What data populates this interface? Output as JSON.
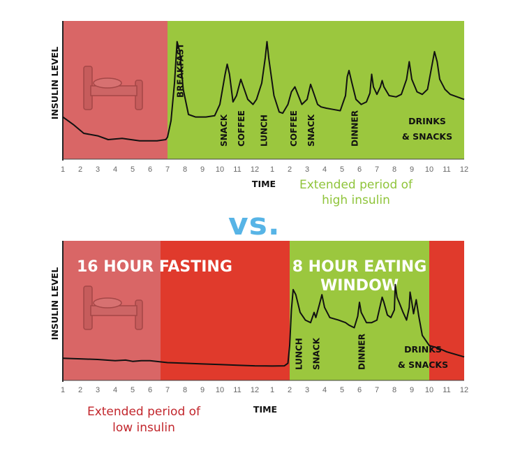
{
  "vs_label": "vs.",
  "colors": {
    "sleep": "#d96666",
    "fasting": "#e03a2c",
    "eating": "#9bc73e",
    "note_green": "#8fc43a",
    "note_red": "#c2262c",
    "vs": "#57b4e6",
    "line": "#111111"
  },
  "chart_data": [
    {
      "type": "line",
      "title": "",
      "ylabel": "INSULIN LEVEL",
      "xlabel": "TIME",
      "x_ticks": [
        "1",
        "2",
        "3",
        "4",
        "5",
        "6",
        "7",
        "8",
        "9",
        "10",
        "11",
        "12",
        "1",
        "2",
        "3",
        "4",
        "5",
        "6",
        "7",
        "8",
        "9",
        "10",
        "11",
        "12"
      ],
      "xlim": [
        1,
        24
      ],
      "ylim": [
        0,
        100
      ],
      "regions": [
        {
          "name": "sleep",
          "start": 1,
          "end": 7,
          "color": "#d96666"
        },
        {
          "name": "eating",
          "start": 7,
          "end": 24,
          "color": "#9bc73e"
        }
      ],
      "series": [
        {
          "values": [
            [
              1,
              28
            ],
            [
              1.6,
              22
            ],
            [
              2.2,
              15
            ],
            [
              3,
              13
            ],
            [
              3.6,
              10
            ],
            [
              4.4,
              11
            ],
            [
              5.4,
              9
            ],
            [
              6.4,
              9
            ],
            [
              6.9,
              10
            ],
            [
              7.0,
              12
            ],
            [
              7.2,
              25
            ],
            [
              7.4,
              55
            ],
            [
              7.55,
              88
            ],
            [
              7.7,
              80
            ],
            [
              7.9,
              50
            ],
            [
              8.2,
              30
            ],
            [
              8.6,
              28
            ],
            [
              9.2,
              28
            ],
            [
              9.7,
              29
            ],
            [
              10.0,
              38
            ],
            [
              10.3,
              62
            ],
            [
              10.42,
              70
            ],
            [
              10.55,
              62
            ],
            [
              10.75,
              40
            ],
            [
              10.95,
              45
            ],
            [
              11.2,
              58
            ],
            [
              11.3,
              54
            ],
            [
              11.6,
              42
            ],
            [
              11.9,
              38
            ],
            [
              12.1,
              42
            ],
            [
              12.4,
              55
            ],
            [
              12.6,
              75
            ],
            [
              12.7,
              88
            ],
            [
              12.8,
              75
            ],
            [
              13.1,
              45
            ],
            [
              13.4,
              32
            ],
            [
              13.6,
              31
            ],
            [
              13.9,
              38
            ],
            [
              14.1,
              48
            ],
            [
              14.3,
              52
            ],
            [
              14.5,
              45
            ],
            [
              14.7,
              38
            ],
            [
              15.0,
              42
            ],
            [
              15.2,
              54
            ],
            [
              15.35,
              48
            ],
            [
              15.6,
              38
            ],
            [
              15.8,
              36
            ],
            [
              16.1,
              35
            ],
            [
              16.5,
              34
            ],
            [
              16.9,
              33
            ],
            [
              17.2,
              45
            ],
            [
              17.3,
              60
            ],
            [
              17.4,
              65
            ],
            [
              17.55,
              56
            ],
            [
              17.8,
              42
            ],
            [
              18.1,
              38
            ],
            [
              18.4,
              40
            ],
            [
              18.6,
              47
            ],
            [
              18.7,
              62
            ],
            [
              18.8,
              52
            ],
            [
              19.0,
              46
            ],
            [
              19.2,
              52
            ],
            [
              19.3,
              57
            ],
            [
              19.4,
              52
            ],
            [
              19.7,
              45
            ],
            [
              20.1,
              44
            ],
            [
              20.4,
              46
            ],
            [
              20.7,
              58
            ],
            [
              20.85,
              72
            ],
            [
              21.0,
              58
            ],
            [
              21.3,
              48
            ],
            [
              21.6,
              46
            ],
            [
              21.9,
              50
            ],
            [
              22.1,
              65
            ],
            [
              22.3,
              80
            ],
            [
              22.45,
              72
            ],
            [
              22.6,
              58
            ],
            [
              22.9,
              50
            ],
            [
              23.2,
              46
            ],
            [
              23.6,
              44
            ],
            [
              24,
              42
            ]
          ]
        }
      ],
      "annotations": [
        {
          "text": "BREAKFAST",
          "x": 7.7
        },
        {
          "text": "SNACK",
          "x": 10.2
        },
        {
          "text": "COFFEE",
          "x": 11.2
        },
        {
          "text": "LUNCH",
          "x": 12.5
        },
        {
          "text": "COFFEE",
          "x": 14.2
        },
        {
          "text": "SNACK",
          "x": 15.2
        },
        {
          "text": "DINNER",
          "x": 17.7
        }
      ],
      "drinks_label": [
        "DRINKS",
        "& SNACKS"
      ],
      "note": [
        "Extended period of",
        "high insulin"
      ]
    },
    {
      "type": "line",
      "title": "",
      "ylabel": "INSULIN LEVEL",
      "xlabel": "TIME",
      "x_ticks": [
        "1",
        "2",
        "3",
        "4",
        "5",
        "6",
        "7",
        "8",
        "9",
        "10",
        "11",
        "12",
        "1",
        "2",
        "3",
        "4",
        "5",
        "6",
        "7",
        "8",
        "9",
        "10",
        "11",
        "12"
      ],
      "xlim": [
        1,
        24
      ],
      "ylim": [
        0,
        100
      ],
      "regions": [
        {
          "name": "sleep",
          "start": 1,
          "end": 6.6,
          "color": "#d96666"
        },
        {
          "name": "fasting",
          "start": 6.6,
          "end": 14,
          "color": "#e03a2c"
        },
        {
          "name": "eating",
          "start": 14,
          "end": 22,
          "color": "#9bc73e"
        },
        {
          "name": "fasting",
          "start": 22,
          "end": 24,
          "color": "#e03a2c"
        }
      ],
      "region_labels": [
        {
          "lines": [
            "16 HOUR FASTING"
          ],
          "x": 1.8
        },
        {
          "lines": [
            "8 HOUR EATING",
            "WINDOW"
          ],
          "x": 18
        }
      ],
      "series": [
        {
          "values": [
            [
              1,
              12
            ],
            [
              2,
              11.5
            ],
            [
              3,
              11
            ],
            [
              4,
              10
            ],
            [
              4.6,
              10.5
            ],
            [
              5,
              9.5
            ],
            [
              5.5,
              10
            ],
            [
              6,
              10
            ],
            [
              7,
              8.5
            ],
            [
              8,
              8
            ],
            [
              9,
              7.5
            ],
            [
              10,
              7
            ],
            [
              11,
              6.5
            ],
            [
              12,
              6
            ],
            [
              13,
              5.8
            ],
            [
              13.7,
              6
            ],
            [
              13.9,
              8
            ],
            [
              14.0,
              22
            ],
            [
              14.1,
              50
            ],
            [
              14.2,
              66
            ],
            [
              14.35,
              62
            ],
            [
              14.6,
              48
            ],
            [
              14.9,
              42
            ],
            [
              15.2,
              40
            ],
            [
              15.4,
              48
            ],
            [
              15.5,
              44
            ],
            [
              15.7,
              54
            ],
            [
              15.85,
              62
            ],
            [
              16.0,
              52
            ],
            [
              16.3,
              44
            ],
            [
              16.8,
              42
            ],
            [
              17.2,
              40
            ],
            [
              17.4,
              38
            ],
            [
              17.7,
              36
            ],
            [
              17.9,
              45
            ],
            [
              18.0,
              56
            ],
            [
              18.1,
              48
            ],
            [
              18.4,
              40
            ],
            [
              18.7,
              40
            ],
            [
              19.0,
              42
            ],
            [
              19.2,
              54
            ],
            [
              19.3,
              60
            ],
            [
              19.4,
              56
            ],
            [
              19.6,
              46
            ],
            [
              19.8,
              44
            ],
            [
              20.0,
              50
            ],
            [
              20.05,
              70
            ],
            [
              20.15,
              60
            ],
            [
              20.3,
              55
            ],
            [
              20.5,
              48
            ],
            [
              20.7,
              42
            ],
            [
              20.85,
              52
            ],
            [
              20.9,
              64
            ],
            [
              21.0,
              56
            ],
            [
              21.1,
              47
            ],
            [
              21.25,
              58
            ],
            [
              21.4,
              45
            ],
            [
              21.6,
              30
            ],
            [
              22.0,
              22
            ],
            [
              22.5,
              20
            ],
            [
              23,
              17
            ],
            [
              24,
              13
            ]
          ]
        }
      ],
      "annotations": [
        {
          "text": "LUNCH",
          "x": 14.5
        },
        {
          "text": "SNACK",
          "x": 15.5
        },
        {
          "text": "DINNER",
          "x": 18.1
        }
      ],
      "drinks_label": [
        "DRINKS",
        "& SNACKS"
      ],
      "note": [
        "Extended period of",
        "low insulin"
      ]
    }
  ]
}
